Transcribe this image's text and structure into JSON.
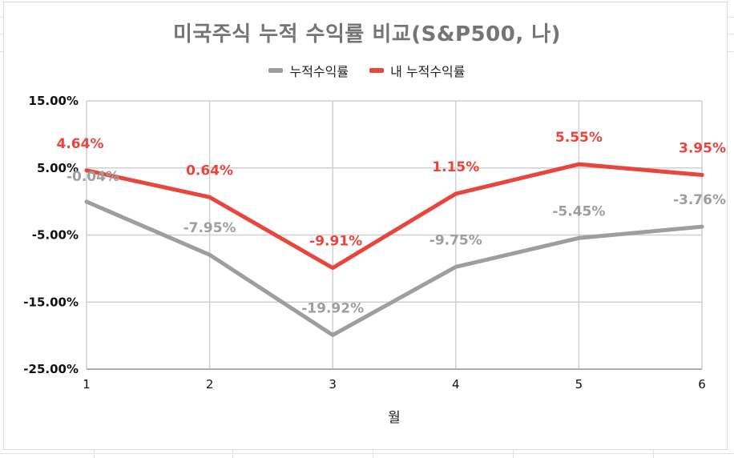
{
  "chart_data": {
    "type": "line",
    "title": "미국주식 누적 수익률 비교(S&P500, 나)",
    "xlabel": "월",
    "ylabel": "",
    "x": [
      1,
      2,
      3,
      4,
      5,
      6
    ],
    "ylim": [
      -25,
      15
    ],
    "y_ticks": [
      "15.00%",
      "5.00%",
      "-5.00%",
      "-15.00%",
      "-25.00%"
    ],
    "y_tick_values": [
      15,
      5,
      -5,
      -15,
      -25
    ],
    "grid": true,
    "legend_position": "top",
    "series": [
      {
        "name": "누적수익률",
        "color": "#9e9e9e",
        "values": [
          -0.04,
          -7.95,
          -19.92,
          -9.75,
          -5.45,
          -3.76
        ],
        "labels": [
          "-0.04%",
          "-7.95%",
          "-19.92%",
          "-9.75%",
          "-5.45%",
          "-3.76%"
        ]
      },
      {
        "name": "내 누적수익률",
        "color": "#e8453c",
        "values": [
          4.64,
          0.64,
          -9.91,
          1.15,
          5.55,
          3.95
        ],
        "labels": [
          "4.64%",
          "0.64%",
          "-9.91%",
          "1.15%",
          "5.55%",
          "3.95%"
        ]
      }
    ]
  }
}
